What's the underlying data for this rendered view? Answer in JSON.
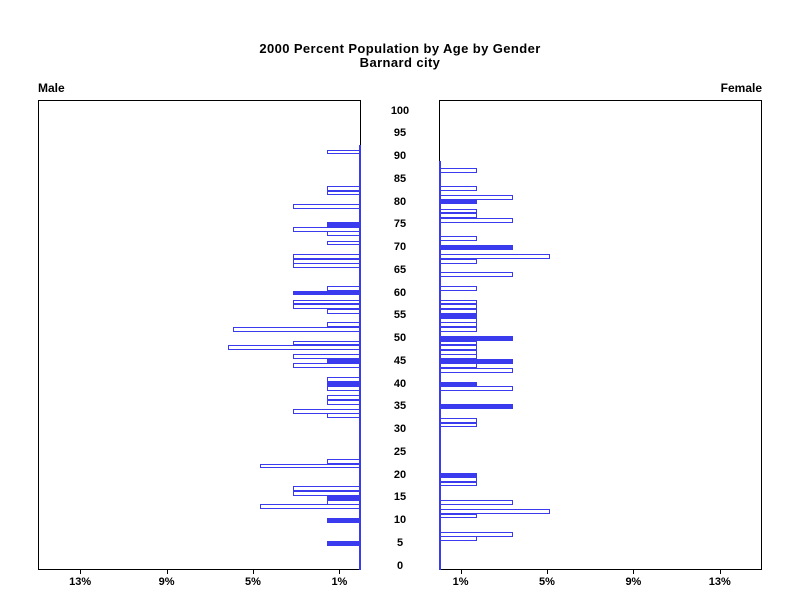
{
  "header": {
    "title_line1": "2000 Percent Population by Age by Gender",
    "title_line2": "Barnard city"
  },
  "panels": {
    "left_label": "Male",
    "right_label": "Female"
  },
  "colors": {
    "bar_blue": "#3a3aee",
    "hollow_fill": "#ffffff",
    "axis_black": "#000000"
  },
  "chart_data": {
    "type": "bar",
    "subtype": "population-pyramid-single-year-of-age",
    "title": "2000 Percent Population by Age by Gender",
    "subtitle": "Barnard city",
    "age_axis": {
      "min": 0,
      "max": 100,
      "step": 5,
      "tick_labels": [
        100,
        95,
        90,
        85,
        80,
        75,
        70,
        65,
        60,
        55,
        50,
        45,
        40,
        35,
        30,
        25,
        20,
        15,
        10,
        5,
        0
      ]
    },
    "pct_axis": {
      "xlim_pct": [
        0,
        15
      ],
      "male_ticks": [
        {
          "label": "13%",
          "value": 13
        },
        {
          "label": "9%",
          "value": 9
        },
        {
          "label": "5%",
          "value": 5
        },
        {
          "label": "1%",
          "value": 1
        }
      ],
      "female_ticks": [
        {
          "label": "1%",
          "value": 1
        },
        {
          "label": "5%",
          "value": 5
        },
        {
          "label": "9%",
          "value": 9
        },
        {
          "label": "13%",
          "value": 13
        }
      ]
    },
    "solid_bar_meaning": "bars at ages divisible by 5 are drawn solid; other ages hollow",
    "series": [
      {
        "name": "Male",
        "side": "left",
        "bars": [
          {
            "age": 91,
            "pct": 1.55,
            "solid": false
          },
          {
            "age": 83,
            "pct": 1.55,
            "solid": false
          },
          {
            "age": 82,
            "pct": 1.55,
            "solid": false
          },
          {
            "age": 79,
            "pct": 3.1,
            "solid": false
          },
          {
            "age": 75,
            "pct": 1.55,
            "solid": true
          },
          {
            "age": 74,
            "pct": 3.1,
            "solid": false
          },
          {
            "age": 73,
            "pct": 1.55,
            "solid": false
          },
          {
            "age": 71,
            "pct": 1.55,
            "solid": false
          },
          {
            "age": 68,
            "pct": 3.1,
            "solid": false
          },
          {
            "age": 67,
            "pct": 3.1,
            "solid": false
          },
          {
            "age": 66,
            "pct": 3.1,
            "solid": false
          },
          {
            "age": 61,
            "pct": 1.55,
            "solid": false
          },
          {
            "age": 60,
            "pct": 3.1,
            "solid": true
          },
          {
            "age": 58,
            "pct": 3.1,
            "solid": false
          },
          {
            "age": 57,
            "pct": 3.1,
            "solid": false
          },
          {
            "age": 56,
            "pct": 1.55,
            "solid": false
          },
          {
            "age": 53,
            "pct": 1.55,
            "solid": false
          },
          {
            "age": 52,
            "pct": 5.9,
            "solid": false
          },
          {
            "age": 49,
            "pct": 3.1,
            "solid": false
          },
          {
            "age": 48,
            "pct": 6.1,
            "solid": false
          },
          {
            "age": 46,
            "pct": 3.1,
            "solid": false
          },
          {
            "age": 45,
            "pct": 1.55,
            "solid": true
          },
          {
            "age": 44,
            "pct": 3.1,
            "solid": false
          },
          {
            "age": 41,
            "pct": 1.55,
            "solid": false
          },
          {
            "age": 40,
            "pct": 1.55,
            "solid": true
          },
          {
            "age": 39,
            "pct": 1.55,
            "solid": false
          },
          {
            "age": 37,
            "pct": 1.55,
            "solid": false
          },
          {
            "age": 36,
            "pct": 1.55,
            "solid": false
          },
          {
            "age": 34,
            "pct": 3.1,
            "solid": false
          },
          {
            "age": 33,
            "pct": 1.55,
            "solid": false
          },
          {
            "age": 23,
            "pct": 1.55,
            "solid": false
          },
          {
            "age": 22,
            "pct": 4.65,
            "solid": false
          },
          {
            "age": 17,
            "pct": 3.1,
            "solid": false
          },
          {
            "age": 16,
            "pct": 3.1,
            "solid": false
          },
          {
            "age": 15,
            "pct": 1.55,
            "solid": true
          },
          {
            "age": 14,
            "pct": 1.55,
            "solid": false
          },
          {
            "age": 13,
            "pct": 4.65,
            "solid": false
          },
          {
            "age": 10,
            "pct": 1.55,
            "solid": true
          },
          {
            "age": 5,
            "pct": 1.55,
            "solid": true
          }
        ]
      },
      {
        "name": "Female",
        "side": "right",
        "bars": [
          {
            "age": 87,
            "pct": 1.7,
            "solid": false
          },
          {
            "age": 83,
            "pct": 1.7,
            "solid": false
          },
          {
            "age": 81,
            "pct": 3.4,
            "solid": false
          },
          {
            "age": 80,
            "pct": 1.7,
            "solid": true
          },
          {
            "age": 78,
            "pct": 1.7,
            "solid": false
          },
          {
            "age": 77,
            "pct": 1.7,
            "solid": false
          },
          {
            "age": 76,
            "pct": 3.4,
            "solid": false
          },
          {
            "age": 72,
            "pct": 1.7,
            "solid": false
          },
          {
            "age": 70,
            "pct": 3.4,
            "solid": true
          },
          {
            "age": 68,
            "pct": 5.1,
            "solid": false
          },
          {
            "age": 67,
            "pct": 1.7,
            "solid": false
          },
          {
            "age": 64,
            "pct": 3.4,
            "solid": false
          },
          {
            "age": 61,
            "pct": 1.7,
            "solid": false
          },
          {
            "age": 58,
            "pct": 1.7,
            "solid": false
          },
          {
            "age": 57,
            "pct": 1.7,
            "solid": false
          },
          {
            "age": 56,
            "pct": 1.7,
            "solid": false
          },
          {
            "age": 55,
            "pct": 1.7,
            "solid": true
          },
          {
            "age": 54,
            "pct": 1.7,
            "solid": false
          },
          {
            "age": 53,
            "pct": 1.7,
            "solid": false
          },
          {
            "age": 52,
            "pct": 1.7,
            "solid": false
          },
          {
            "age": 50,
            "pct": 3.4,
            "solid": true
          },
          {
            "age": 49,
            "pct": 1.7,
            "solid": false
          },
          {
            "age": 48,
            "pct": 1.7,
            "solid": false
          },
          {
            "age": 47,
            "pct": 1.7,
            "solid": false
          },
          {
            "age": 46,
            "pct": 1.7,
            "solid": false
          },
          {
            "age": 45,
            "pct": 3.4,
            "solid": true
          },
          {
            "age": 44,
            "pct": 1.7,
            "solid": false
          },
          {
            "age": 43,
            "pct": 3.4,
            "solid": false
          },
          {
            "age": 40,
            "pct": 1.7,
            "solid": true
          },
          {
            "age": 39,
            "pct": 3.4,
            "solid": false
          },
          {
            "age": 35,
            "pct": 3.4,
            "solid": true
          },
          {
            "age": 32,
            "pct": 1.7,
            "solid": false
          },
          {
            "age": 31,
            "pct": 1.7,
            "solid": false
          },
          {
            "age": 20,
            "pct": 1.7,
            "solid": true
          },
          {
            "age": 19,
            "pct": 1.7,
            "solid": false
          },
          {
            "age": 18,
            "pct": 1.7,
            "solid": false
          },
          {
            "age": 14,
            "pct": 3.4,
            "solid": false
          },
          {
            "age": 12,
            "pct": 5.1,
            "solid": false
          },
          {
            "age": 11,
            "pct": 1.7,
            "solid": false
          },
          {
            "age": 7,
            "pct": 3.4,
            "solid": false
          },
          {
            "age": 6,
            "pct": 1.7,
            "solid": false
          }
        ]
      }
    ]
  }
}
